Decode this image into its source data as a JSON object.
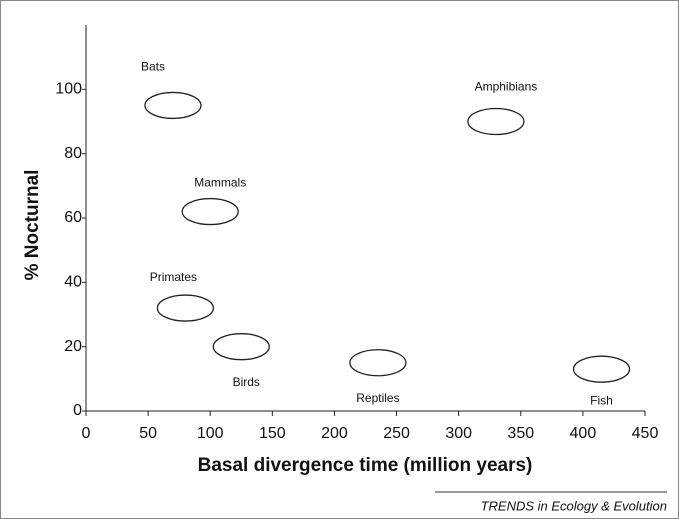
{
  "chart_data": {
    "type": "scatter",
    "x_label": "Basal divergence time (million years)",
    "y_label": "% Nocturnal",
    "point_labels": [
      "Bats",
      "Mammals",
      "Primates",
      "Birds",
      "Reptiles",
      "Amphibians",
      "Fish"
    ],
    "x": [
      70,
      100,
      80,
      125,
      235,
      330,
      415
    ],
    "values": [
      95,
      62,
      32,
      20,
      15,
      90,
      13
    ],
    "color": "#222222",
    "xlim": [
      0,
      450
    ],
    "xticks": [
      0,
      50,
      100,
      150,
      200,
      250,
      300,
      350,
      400,
      450
    ],
    "ylim": [
      0,
      120
    ],
    "yticks": [
      0,
      20,
      40,
      60,
      80,
      100
    ],
    "source": "TRENDS in Ecology & Evolution"
  }
}
